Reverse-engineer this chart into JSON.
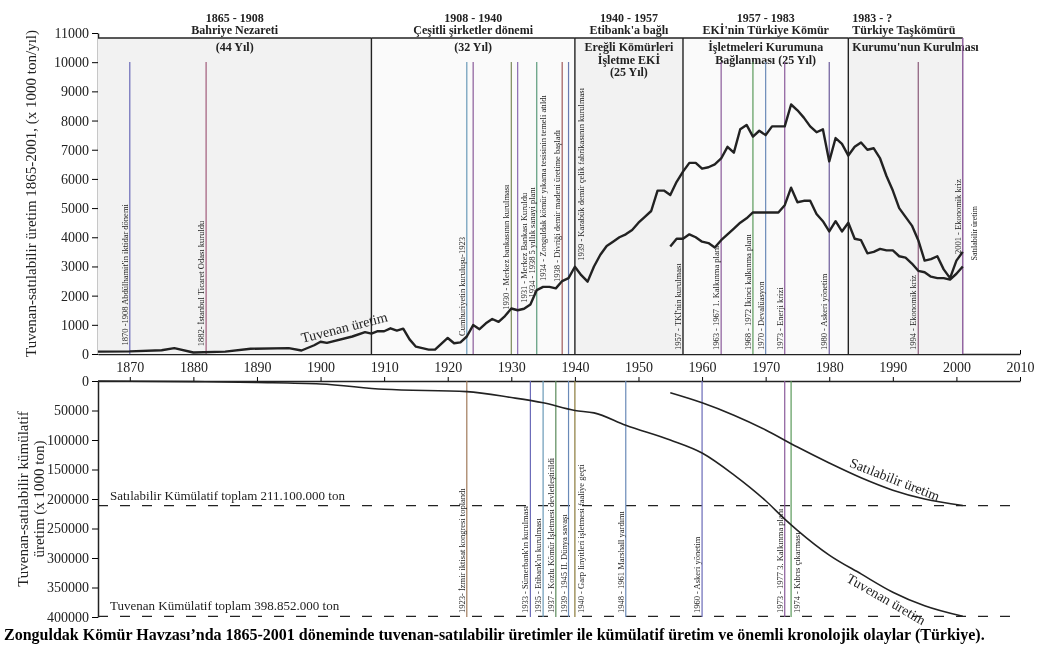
{
  "chart_data": [
    {
      "type": "line",
      "ylabel": "Tuvenan-satılabilir üretim 1865-2001, (x 1000 ton/yıl)",
      "xlim": [
        1865,
        2010
      ],
      "xticks": [
        1870,
        1880,
        1890,
        1900,
        1910,
        1920,
        1930,
        1940,
        1950,
        1960,
        1970,
        1980,
        1990,
        2000,
        2010
      ],
      "ylim": [
        0,
        11000
      ],
      "yticks": [
        0,
        1000,
        2000,
        3000,
        4000,
        5000,
        6000,
        7000,
        8000,
        9000,
        10000,
        11000
      ],
      "grid": false,
      "series": [
        {
          "name": "Tuvenan üretim",
          "color": "#222222",
          "x": [
            1865,
            1870,
            1875,
            1877,
            1880,
            1885,
            1889,
            1895,
            1897,
            1899,
            1900,
            1901,
            1905,
            1907,
            1908,
            1909,
            1910,
            1911,
            1912,
            1913,
            1914,
            1915,
            1917,
            1918,
            1920,
            1921,
            1922,
            1923,
            1924,
            1925,
            1926,
            1927,
            1928,
            1929,
            1930,
            1931,
            1932,
            1933,
            1934,
            1935,
            1936,
            1937,
            1938,
            1939,
            1940,
            1941,
            1942,
            1943,
            1944,
            1945,
            1946,
            1947,
            1948,
            1949,
            1950,
            1951,
            1952,
            1953,
            1954,
            1955,
            1956,
            1957,
            1958,
            1959,
            1960,
            1961,
            1962,
            1963,
            1964,
            1965,
            1966,
            1967,
            1968,
            1969,
            1970,
            1971,
            1972,
            1973,
            1974,
            1975,
            1976,
            1977,
            1978,
            1979,
            1980,
            1981,
            1982,
            1983,
            1984,
            1985,
            1986,
            1987,
            1988,
            1989,
            1990,
            1991,
            1992,
            1993,
            1994,
            1995,
            1996,
            1997,
            1998,
            1999,
            2000,
            2001
          ],
          "values": [
            80,
            90,
            130,
            200,
            50,
            80,
            180,
            200,
            120,
            300,
            420,
            380,
            600,
            750,
            700,
            780,
            780,
            880,
            800,
            870,
            500,
            250,
            150,
            150,
            550,
            370,
            400,
            600,
            990,
            850,
            1050,
            1200,
            1100,
            1300,
            1560,
            1500,
            1550,
            1700,
            2190,
            2300,
            2300,
            2250,
            2500,
            2600,
            2990,
            2700,
            2480,
            3000,
            3400,
            3700,
            3850,
            4000,
            4100,
            4250,
            4500,
            4700,
            4900,
            5600,
            5600,
            5450,
            5900,
            6250,
            6550,
            6550,
            6350,
            6400,
            6500,
            6700,
            7100,
            6900,
            7700,
            7850,
            7450,
            7650,
            7500,
            7800,
            7800,
            7800,
            8550,
            8350,
            8100,
            7800,
            7600,
            7700,
            6600,
            7400,
            7200,
            6800,
            7100,
            7250,
            7000,
            7050,
            6700,
            6100,
            5600,
            5000,
            4700,
            4400,
            3900,
            3200,
            3250,
            3350,
            2900,
            2600,
            3200,
            3500
          ]
        },
        {
          "name": "Satılabilir üretim",
          "color": "#222222",
          "x": [
            1955,
            1956,
            1957,
            1958,
            1959,
            1960,
            1961,
            1962,
            1963,
            1964,
            1965,
            1966,
            1967,
            1968,
            1969,
            1970,
            1971,
            1972,
            1973,
            1974,
            1975,
            1976,
            1977,
            1978,
            1979,
            1980,
            1981,
            1982,
            1983,
            1984,
            1985,
            1986,
            1987,
            1988,
            1989,
            1990,
            1991,
            1992,
            1993,
            1994,
            1995,
            1996,
            1997,
            1998,
            1999,
            2000,
            2001
          ],
          "values": [
            3680,
            3950,
            3950,
            4100,
            4000,
            3850,
            3800,
            3650,
            3900,
            4100,
            4300,
            4500,
            4650,
            4850,
            4850,
            4850,
            4850,
            4850,
            5100,
            5700,
            5200,
            5250,
            5250,
            4800,
            4550,
            4200,
            4550,
            4200,
            4500,
            3950,
            3900,
            3450,
            3500,
            3600,
            3550,
            3550,
            3350,
            3300,
            3100,
            2850,
            2800,
            2650,
            2600,
            2600,
            2550,
            2750,
            3000
          ]
        }
      ],
      "ref_lines": [
        {
          "axis": "x",
          "value": 1870,
          "label": "1870 -1908  Abdülhamit'in iktidar dönemi",
          "color": "#6a6ab8"
        },
        {
          "axis": "x",
          "value": 1882,
          "label": "1882- İstanbul Ticaret Odası kuruldu",
          "color": "#a05a7a"
        },
        {
          "axis": "x",
          "value": 1908,
          "color": "#222222"
        },
        {
          "axis": "x",
          "value": 1923,
          "label": "Cumhuriyetin kuruluşu-1923",
          "color": "#6a9ab8"
        },
        {
          "axis": "x",
          "value": 1924,
          "color": "#8a5a9a"
        },
        {
          "axis": "x",
          "value": 1930,
          "label": "1930 - Merkez bankasının kurulması",
          "color": "#7a8a5a"
        },
        {
          "axis": "x",
          "value": 1931,
          "label": "1931 - Merkez Bankası Kuruldu",
          "color": "#8a6ab0"
        },
        {
          "axis": "x",
          "value": 1934,
          "label": "1934 - 1938 5 yıllık sanayi planı",
          "color": "#5a9a7a"
        },
        {
          "axis": "x",
          "value": 1938,
          "label": "1938 - Divriği demir madeni üretime başladı",
          "color": "#a05a5a"
        },
        {
          "axis": "x",
          "value": 1939,
          "label": "1939 - Karabük demir çelik fabrikasının kurulması",
          "color": "#6a7ab0"
        },
        {
          "axis": "x",
          "value": 1940,
          "color": "#222222"
        },
        {
          "axis": "x",
          "value": 1957,
          "label": "1957 - TKİ'nin kurulması",
          "color": "#222222"
        },
        {
          "axis": "x",
          "value": 1963,
          "label": "1963 - 1967 1. Kalkınma planı",
          "color": "#8a5a9a"
        },
        {
          "axis": "x",
          "value": 1968,
          "label": "1968 - 1972 İkinci kalkınma planı",
          "color": "#5a9a5a"
        },
        {
          "axis": "x",
          "value": 1970,
          "label": "1970 - Devalüasyon",
          "color": "#6a8ab8"
        },
        {
          "axis": "x",
          "value": 1973,
          "label": "1973 - Enerji krizi",
          "color": "#8a5a9a"
        },
        {
          "axis": "x",
          "value": 1980,
          "label": "1980 - Askeri yönetim",
          "color": "#6a5a9a"
        },
        {
          "axis": "x",
          "value": 1983,
          "color": "#222222"
        },
        {
          "axis": "x",
          "value": 1994,
          "label": "1994 - Ekonomik kriz",
          "color": "#8a5a7a"
        },
        {
          "axis": "x",
          "value": 2001,
          "label": "2001 - Ekonomik kriz",
          "color": "#8a5a9a"
        }
      ],
      "bands": [
        {
          "axis": "x",
          "from": 1865,
          "to": 1908,
          "label": "1865 - 1908\nBahriye Nezareti\n(44 Yıl)",
          "color": "#f2f2f2"
        },
        {
          "axis": "x",
          "from": 1908,
          "to": 1940,
          "label": "1908 - 1940\nÇeşitli şirketler dönemi\n(32 Yıl)",
          "color": "#fafafa"
        },
        {
          "axis": "x",
          "from": 1940,
          "to": 1957,
          "label": "1940 - 1957\nEtibank'a bağlı\nEreğli Kömürleri\nİşletme EKİ\n(25 Yıl)",
          "color": "#f2f2f2"
        },
        {
          "axis": "x",
          "from": 1957,
          "to": 1983,
          "label": "1957 - 1983\nEKİ'nin Türkiye Kömür\nİşletmeleri Kurumuna\nBağlanması (25 Yıl)",
          "color": "#fafafa"
        },
        {
          "axis": "x",
          "from": 1983,
          "to": 2001,
          "label": "1983 - ?\nTürkiye Taşkömürü\nKurumu'nun Kurulması",
          "color": "#f2f2f2"
        }
      ],
      "annotations": [
        {
          "text": "1934 - Zonguldak kömür yıkama tesisinin temeli atıldı",
          "x": 1934
        }
      ]
    },
    {
      "type": "line",
      "ylabel": "Tuvenan-satılabilir kümülatif\nüretim (x 1000 ton)",
      "xlim": [
        1865,
        2010
      ],
      "xticks": [
        1870,
        1880,
        1890,
        1900,
        1910,
        1920,
        1930,
        1940,
        1950,
        1960,
        1970,
        1980,
        1990,
        2000,
        2010
      ],
      "ylim": [
        400000,
        0
      ],
      "yticks": [
        0,
        50000,
        100000,
        150000,
        200000,
        250000,
        300000,
        350000,
        400000
      ],
      "tick_labels": "y",
      "grid": false,
      "series": [
        {
          "name": "Tuvenan üretim",
          "color": "#222222",
          "x": [
            1865,
            1880,
            1890,
            1900,
            1910,
            1923,
            1930,
            1935,
            1940,
            1943,
            1948,
            1955,
            1960,
            1965,
            1970,
            1973,
            1975,
            1980,
            1985,
            1990,
            1995,
            2001
          ],
          "values": [
            0,
            1000,
            2500,
            5000,
            14000,
            18000,
            28000,
            37000,
            50000,
            54000,
            75000,
            100000,
            122000,
            159000,
            203000,
            234000,
            253000,
            295000,
            327000,
            358000,
            381000,
            398852
          ]
        },
        {
          "name": "Satılabilir üretim",
          "color": "#222222",
          "x": [
            1955,
            1960,
            1965,
            1970,
            1975,
            1980,
            1985,
            1990,
            1995,
            2001
          ],
          "values": [
            20000,
            37000,
            58000,
            83000,
            112000,
            139000,
            164000,
            185000,
            200000,
            211100
          ]
        }
      ],
      "ref_lines": [
        {
          "axis": "y",
          "value": 211100,
          "label": "Satılabilir Kümülatif toplam 211.100.000 ton",
          "color": "#222222",
          "line_style": "dashed"
        },
        {
          "axis": "y",
          "value": 398852,
          "label": "Tuvenan Kümülatif toplam 398.852.000 ton",
          "color": "#222222",
          "line_style": "dashed"
        },
        {
          "axis": "x",
          "value": 1923,
          "label": "1923- İzmir iktisat kongresi toplandı",
          "color": "#a07a5a"
        },
        {
          "axis": "x",
          "value": 1933,
          "label": "1933 - Sümerbank'ın kurulması",
          "color": "#6a6ab8"
        },
        {
          "axis": "x",
          "value": 1935,
          "label": "1935 - Etibank'ın kurulması",
          "color": "#6a9ab8"
        },
        {
          "axis": "x",
          "value": 1937,
          "label": "1937 - Kozlu Kömür İşletmesi devletleştirildi",
          "color": "#5a8a5a"
        },
        {
          "axis": "x",
          "value": 1939,
          "label": "1939 - 1945 II. Dünya savaşı",
          "color": "#6a8ab8"
        },
        {
          "axis": "x",
          "value": 1940,
          "label": "1940 - Garp linyitleri işletmesi faaliye geçti",
          "color": "#8a7a3a"
        },
        {
          "axis": "x",
          "value": 1948,
          "label": "1948 - 1961 Marshall yardımı",
          "color": "#6a8ab8"
        },
        {
          "axis": "x",
          "value": 1960,
          "label": "1960 - Askeri yönetim",
          "color": "#6a6ab8"
        },
        {
          "axis": "x",
          "value": 1973,
          "label": "1973 - 1977 3. Kalkınma planı",
          "color": "#8a5a9a"
        },
        {
          "axis": "x",
          "value": 1974,
          "label": "1974 - Kıbrıs çıkarması",
          "color": "#5a9a5a"
        }
      ],
      "annotations": [
        "Zonguldak Kömür Havzası’nda 1865-2001 döneminde tuvenan-satılabilir üretimler ile kümülatif üretim ve önemli kronolojik olaylar (Türkiye)."
      ]
    }
  ]
}
